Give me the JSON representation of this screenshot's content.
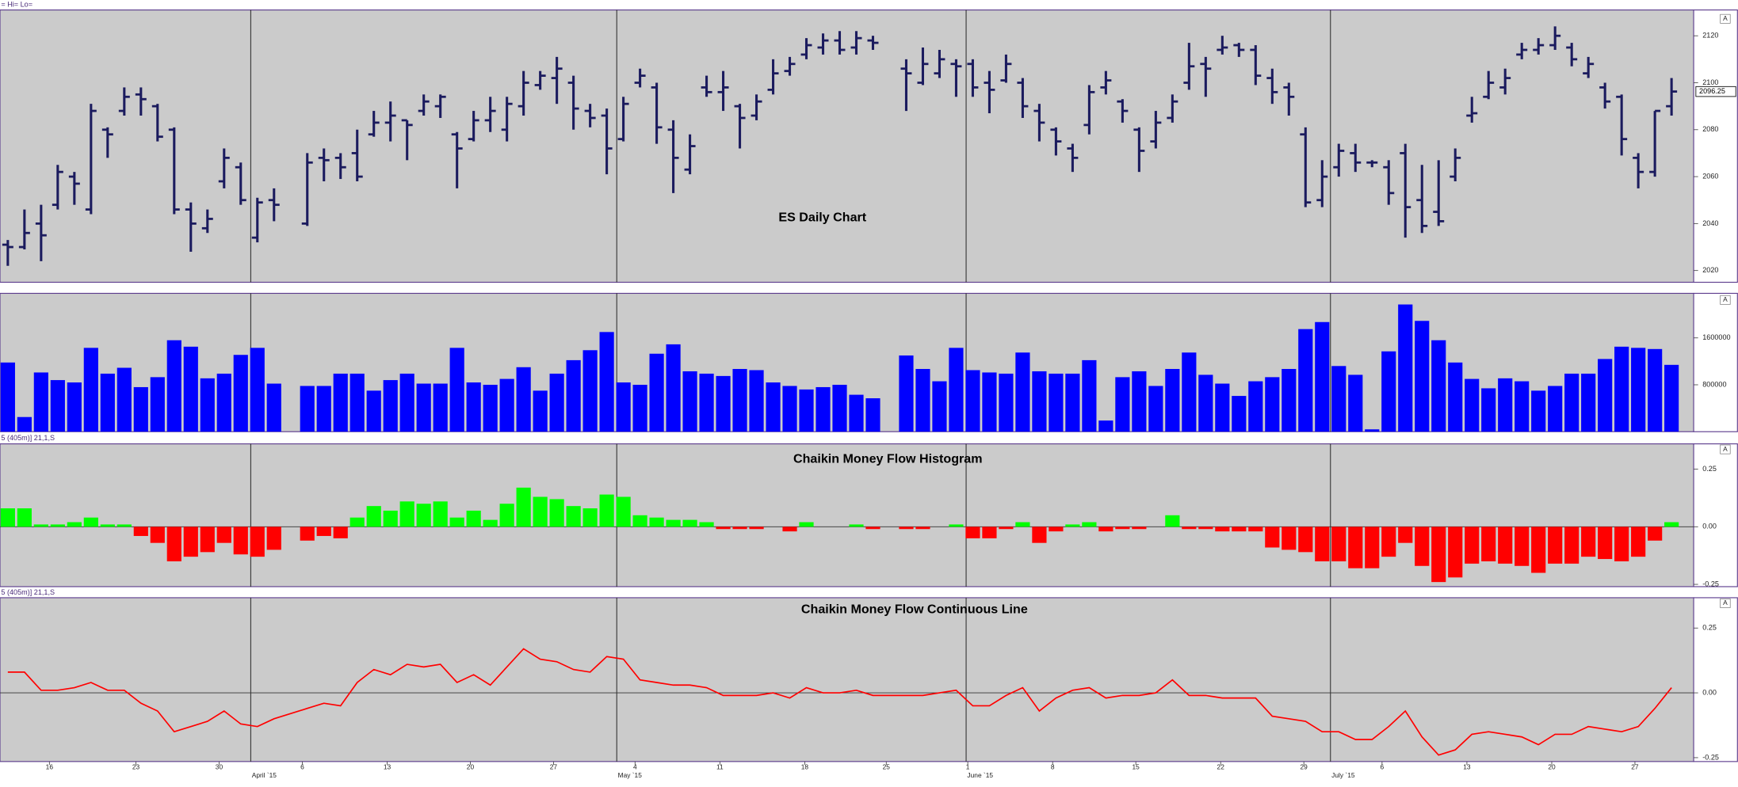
{
  "chart_data": [
    {
      "type": "ohlc",
      "title": "ES Daily Chart",
      "header": "= Hi= Lo=",
      "scale_button": "A",
      "color": "#1b1b5e",
      "xlim": [
        -0.47,
        101.33
      ],
      "ylim": [
        2015,
        2131
      ],
      "yticks": [
        2020,
        2040,
        2060,
        2080,
        2100,
        2120
      ],
      "open": [
        2031,
        2030,
        2040,
        2048,
        2060,
        2046,
        2080,
        2088,
        2095,
        2090,
        2080,
        2046,
        2038,
        2058,
        2064,
        2034,
        2050,
        null,
        2040,
        2068,
        2068,
        2070,
        2078,
        2083,
        2084,
        2088,
        2090,
        2078,
        2076,
        2084,
        2080,
        2090,
        2099,
        2102,
        2100,
        2088,
        2086,
        2076,
        2100,
        2098,
        2080,
        2063,
        2098,
        2096,
        2090,
        2086,
        2097,
        2105,
        2112,
        2115,
        2118,
        2115,
        2118,
        null,
        2106,
        2100,
        2104,
        2108,
        2108,
        2100,
        2101,
        2100,
        2088,
        2080,
        2072,
        2082,
        2098,
        2092,
        2080,
        2075,
        2085,
        2100,
        2108,
        2114,
        2116,
        2114,
        2102,
        2098,
        2078,
        2050,
        2064,
        2070,
        2066,
        2064,
        2070,
        2050,
        2045,
        2060,
        2086,
        2094,
        2098,
        2112,
        2114,
        2116,
        2115,
        2104,
        2098,
        2094,
        2068,
        2062,
        2090
      ],
      "high": [
        2033,
        2046,
        2048,
        2065,
        2062,
        2091,
        2081,
        2098,
        2098,
        2091,
        2081,
        2049,
        2046,
        2072,
        2066,
        2051,
        2055,
        null,
        2070,
        2072,
        2070,
        2080,
        2088,
        2092,
        2084,
        2095,
        2095,
        2079,
        2088,
        2094,
        2094,
        2105,
        2105,
        2111,
        2103,
        2091,
        2089,
        2094,
        2106,
        2100,
        2084,
        2078,
        2103,
        2105,
        2091,
        2095,
        2110,
        2111,
        2119,
        2121,
        2122,
        2122,
        2120,
        null,
        2110,
        2115,
        2114,
        2110,
        2110,
        2105,
        2112,
        2102,
        2091,
        2081,
        2074,
        2099,
        2105,
        2093,
        2081,
        2088,
        2095,
        2117,
        2111,
        2120,
        2117,
        2116,
        2106,
        2100,
        2081,
        2067,
        2074,
        2074,
        2067,
        2067,
        2074,
        2065,
        2067,
        2072,
        2094,
        2105,
        2106,
        2117,
        2119,
        2124,
        2117,
        2111,
        2100,
        2095,
        2070,
        2088,
        2102
      ],
      "low": [
        2022,
        2029,
        2024,
        2046,
        2048,
        2044,
        2068,
        2086,
        2086,
        2075,
        2044,
        2028,
        2036,
        2055,
        2048,
        2032,
        2041,
        null,
        2039,
        2058,
        2059,
        2058,
        2077,
        2075,
        2067,
        2086,
        2085,
        2055,
        2075,
        2079,
        2075,
        2086,
        2097,
        2091,
        2080,
        2081,
        2061,
        2075,
        2098,
        2074,
        2053,
        2061,
        2094,
        2088,
        2072,
        2084,
        2095,
        2103,
        2110,
        2112,
        2112,
        2112,
        2114,
        null,
        2088,
        2099,
        2102,
        2094,
        2094,
        2087,
        2100,
        2085,
        2075,
        2069,
        2062,
        2078,
        2095,
        2083,
        2062,
        2072,
        2083,
        2097,
        2094,
        2112,
        2111,
        2099,
        2091,
        2086,
        2047,
        2047,
        2060,
        2062,
        2064,
        2048,
        2034,
        2036,
        2039,
        2058,
        2083,
        2093,
        2095,
        2110,
        2112,
        2114,
        2107,
        2102,
        2089,
        2069,
        2055,
        2060,
        2086
      ],
      "close": [
        2030,
        2036,
        2035,
        2062,
        2057,
        2088,
        2078,
        2094,
        2093,
        2077,
        2046,
        2040,
        2042,
        2068,
        2050,
        2049,
        2048,
        null,
        2066,
        2067,
        2064,
        2060,
        2083,
        2086,
        2082,
        2092,
        2094,
        2072,
        2084,
        2088,
        2091,
        2100,
        2103,
        2106,
        2089,
        2085,
        2072,
        2091,
        2103,
        2081,
        2068,
        2073,
        2096,
        2098,
        2085,
        2092,
        2104,
        2108,
        2116,
        2118,
        2114,
        2119,
        2117,
        null,
        2104,
        2108,
        2110,
        2107,
        2098,
        2097,
        2108,
        2090,
        2083,
        2075,
        2068,
        2096,
        2101,
        2088,
        2071,
        2083,
        2092,
        2107,
        2106,
        2115,
        2114,
        2103,
        2096,
        2094,
        2049,
        2060,
        2071,
        2066,
        2066,
        2053,
        2047,
        2039,
        2041,
        2068,
        2087,
        2100,
        2102,
        2114,
        2116,
        2120,
        2110,
        2108,
        2092,
        2076,
        2062,
        2088,
        2096.25
      ]
    },
    {
      "type": "bar",
      "scale_button": "A",
      "color": "#0000ff",
      "xlim": [
        -0.47,
        101.33
      ],
      "ylim": [
        0,
        2360000
      ],
      "yticks": [
        800000,
        1600000
      ],
      "values": [
        1180000,
        250000,
        1010000,
        880000,
        840000,
        1430000,
        990000,
        1090000,
        760000,
        930000,
        1560000,
        1450000,
        910000,
        990000,
        1310000,
        1430000,
        820000,
        null,
        780000,
        780000,
        990000,
        990000,
        700000,
        880000,
        990000,
        820000,
        820000,
        1430000,
        840000,
        800000,
        900000,
        1100000,
        700000,
        990000,
        1220000,
        1390000,
        1700000,
        840000,
        800000,
        1330000,
        1490000,
        1030000,
        990000,
        950000,
        1070000,
        1050000,
        840000,
        780000,
        720000,
        760000,
        800000,
        630000,
        570000,
        null,
        1300000,
        1070000,
        860000,
        1430000,
        1050000,
        1010000,
        990000,
        1350000,
        1030000,
        990000,
        990000,
        1220000,
        190000,
        930000,
        1030000,
        780000,
        1070000,
        1350000,
        970000,
        820000,
        610000,
        860000,
        930000,
        1070000,
        1750000,
        1870000,
        1120000,
        970000,
        40000,
        1370000,
        2170000,
        1890000,
        1560000,
        1180000,
        900000,
        740000,
        910000,
        860000,
        700000,
        780000,
        990000,
        990000,
        1240000,
        1450000,
        1430000,
        1410000,
        1140000
      ]
    },
    {
      "type": "histogram",
      "title": "Chaikin Money Flow Histogram",
      "header": "5 (405m)] 21,1,S",
      "scale_button": "A",
      "positive_color": "#00ff00",
      "negative_color": "#ff0000",
      "zero_line": true,
      "xlim": [
        -0.47,
        101.33
      ],
      "ylim": [
        -0.26,
        0.36
      ],
      "yticks": [
        {
          "value": 0.25,
          "label": "0.25"
        },
        {
          "value": 0,
          "label": "0.00"
        },
        {
          "value": -0.25,
          "label": "-0.25"
        }
      ],
      "values": [
        0.08,
        0.08,
        0.01,
        0.01,
        0.02,
        0.04,
        0.01,
        0.01,
        -0.04,
        -0.07,
        -0.15,
        -0.13,
        -0.11,
        -0.07,
        -0.12,
        -0.13,
        -0.1,
        null,
        -0.06,
        -0.04,
        -0.05,
        0.04,
        0.09,
        0.07,
        0.11,
        0.1,
        0.11,
        0.04,
        0.07,
        0.03,
        0.1,
        0.17,
        0.13,
        0.12,
        0.09,
        0.08,
        0.14,
        0.13,
        0.05,
        0.04,
        0.03,
        0.03,
        0.02,
        -0.01,
        -0.01,
        -0.01,
        0,
        -0.02,
        0.02,
        0,
        0,
        0.01,
        -0.01,
        null,
        -0.01,
        -0.01,
        0,
        0.01,
        -0.05,
        -0.05,
        -0.01,
        0.02,
        -0.07,
        -0.02,
        0.01,
        0.02,
        -0.02,
        -0.01,
        -0.01,
        0,
        0.05,
        -0.01,
        -0.01,
        -0.02,
        -0.02,
        -0.02,
        -0.09,
        -0.1,
        -0.11,
        -0.15,
        -0.15,
        -0.18,
        -0.18,
        -0.13,
        -0.07,
        -0.17,
        -0.24,
        -0.22,
        -0.16,
        -0.15,
        -0.16,
        -0.17,
        -0.2,
        -0.16,
        -0.16,
        -0.13,
        -0.14,
        -0.15,
        -0.13,
        -0.06,
        0.02
      ]
    },
    {
      "type": "line",
      "title": "Chaikin Money Flow Continuous Line",
      "header": "5 (405m)] 21,1,S",
      "scale_button": "A",
      "color": "#ff0000",
      "zero_line": true,
      "xlim": [
        -0.47,
        101.33
      ],
      "ylim": [
        -0.265,
        0.367
      ],
      "yticks": [
        {
          "value": 0.25,
          "label": "0.25"
        },
        {
          "value": 0,
          "label": "0.00"
        },
        {
          "value": -0.25,
          "label": "-0.25"
        }
      ],
      "xticks": [
        {
          "value": 2.5,
          "label": "16"
        },
        {
          "value": 7.7,
          "label": "23"
        },
        {
          "value": 12.7,
          "label": "30"
        },
        {
          "value": 17.7,
          "label": "6"
        },
        {
          "value": 22.8,
          "label": "13"
        },
        {
          "value": 27.8,
          "label": "20"
        },
        {
          "value": 32.8,
          "label": "27"
        },
        {
          "value": 37.7,
          "label": "4"
        },
        {
          "value": 42.8,
          "label": "11"
        },
        {
          "value": 47.9,
          "label": "18"
        },
        {
          "value": 52.8,
          "label": "25"
        },
        {
          "value": 57.7,
          "label": "1"
        },
        {
          "value": 62.8,
          "label": "8"
        },
        {
          "value": 67.8,
          "label": "15"
        },
        {
          "value": 72.9,
          "label": "22"
        },
        {
          "value": 77.9,
          "label": "29"
        },
        {
          "value": 82.6,
          "label": "6"
        },
        {
          "value": 87.7,
          "label": "13"
        },
        {
          "value": 92.8,
          "label": "20"
        },
        {
          "value": 97.8,
          "label": "27"
        }
      ],
      "month_ticks": [
        {
          "value": 14.6,
          "label": "April `15"
        },
        {
          "value": 36.6,
          "label": "May `15"
        },
        {
          "value": 57.6,
          "label": "June `15"
        },
        {
          "value": 79.5,
          "label": "July `15"
        }
      ],
      "x": [
        0,
        1,
        2,
        3,
        4,
        5,
        6,
        7,
        8,
        9,
        10,
        11,
        12,
        13,
        14,
        15,
        16,
        18,
        19,
        20,
        21,
        22,
        23,
        24,
        25,
        26,
        27,
        28,
        29,
        30,
        31,
        32,
        33,
        34,
        35,
        36,
        37,
        38,
        39,
        40,
        41,
        42,
        43,
        44,
        45,
        46,
        47,
        48,
        49,
        50,
        51,
        52,
        54,
        55,
        56,
        57,
        58,
        59,
        60,
        61,
        62,
        63,
        64,
        65,
        66,
        67,
        68,
        69,
        70,
        71,
        72,
        73,
        74,
        75,
        76,
        77,
        78,
        79,
        80,
        81,
        82,
        83,
        84,
        85,
        86,
        87,
        88,
        89,
        90,
        91,
        92,
        93,
        94,
        95,
        96,
        97,
        98,
        99,
        100
      ],
      "values": [
        0.08,
        0.08,
        0.01,
        0.01,
        0.02,
        0.04,
        0.01,
        0.01,
        -0.04,
        -0.07,
        -0.15,
        -0.13,
        -0.11,
        -0.07,
        -0.12,
        -0.13,
        -0.1,
        -0.06,
        -0.04,
        -0.05,
        0.04,
        0.09,
        0.07,
        0.11,
        0.1,
        0.11,
        0.04,
        0.07,
        0.03,
        0.1,
        0.17,
        0.13,
        0.12,
        0.09,
        0.08,
        0.14,
        0.13,
        0.05,
        0.04,
        0.03,
        0.03,
        0.02,
        -0.01,
        -0.01,
        -0.01,
        0,
        -0.02,
        0.02,
        0,
        0,
        0.01,
        -0.01,
        -0.01,
        -0.01,
        0,
        0.01,
        -0.05,
        -0.05,
        -0.01,
        0.02,
        -0.07,
        -0.02,
        0.01,
        0.02,
        -0.02,
        -0.01,
        -0.01,
        0,
        0.05,
        -0.01,
        -0.01,
        -0.02,
        -0.02,
        -0.02,
        -0.09,
        -0.1,
        -0.11,
        -0.15,
        -0.15,
        -0.18,
        -0.18,
        -0.13,
        -0.07,
        -0.17,
        -0.24,
        -0.22,
        -0.16,
        -0.15,
        -0.16,
        -0.17,
        -0.2,
        -0.16,
        -0.16,
        -0.13,
        -0.14,
        -0.15,
        -0.13,
        -0.06,
        0.02
      ]
    }
  ]
}
